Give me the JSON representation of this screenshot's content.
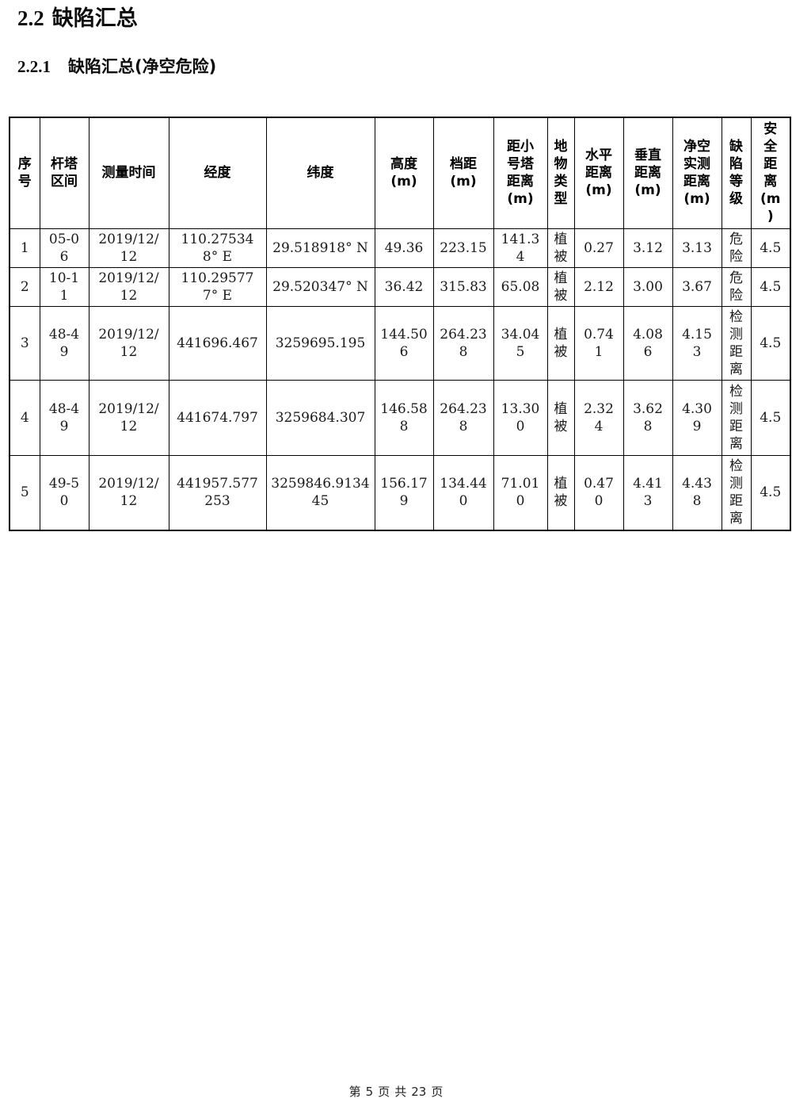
{
  "titles": {
    "section_number": "2.2",
    "section_text": "缺陷汇总",
    "subsection_number": "2.2.1",
    "subsection_text": "缺陷汇总(净空危险)"
  },
  "table": {
    "headers": [
      "序\n号",
      "杆塔\n区间",
      "测量时间",
      "经度",
      "纬度",
      "高度\n(m)",
      "档距\n(m)",
      "距小\n号塔\n距离\n(m)",
      "地\n物\n类\n型",
      "水平\n距离\n(m)",
      "垂直\n距离\n(m)",
      "净空\n实测\n距离\n(m)",
      "缺\n陷\n等\n级",
      "安\n全\n距\n离\n(m\n)"
    ],
    "rows": [
      [
        "1",
        "05-06",
        "2019/12/12",
        "110.275348° E",
        "29.518918° N",
        "49.36",
        "223.15",
        "141.34",
        "植被",
        "0.27",
        "3.12",
        "3.13",
        "危险",
        "4.5"
      ],
      [
        "2",
        "10-11",
        "2019/12/12",
        "110.295777° E",
        "29.520347° N",
        "36.42",
        "315.83",
        "65.08",
        "植被",
        "2.12",
        "3.00",
        "3.67",
        "危险",
        "4.5"
      ],
      [
        "3",
        "48-49",
        "2019/12/12",
        "441696.467",
        "3259695.195",
        "144.506",
        "264.238",
        "34.045",
        "植被",
        "0.741",
        "4.086",
        "4.153",
        "检测距离",
        "4.5"
      ],
      [
        "4",
        "48-49",
        "2019/12/12",
        "441674.797",
        "3259684.307",
        "146.588",
        "264.238",
        "13.300",
        "植被",
        "2.324",
        "3.628",
        "4.309",
        "检测距离",
        "4.5"
      ],
      [
        "5",
        "49-50",
        "2019/12/12",
        "441957.577253",
        "3259846.913445",
        "156.179",
        "134.440",
        "71.010",
        "植被",
        "0.470",
        "4.413",
        "4.438",
        "检测距离",
        "4.5"
      ]
    ]
  },
  "footer": {
    "parts": [
      "第",
      "5",
      "页",
      "共",
      "23",
      "页"
    ]
  }
}
